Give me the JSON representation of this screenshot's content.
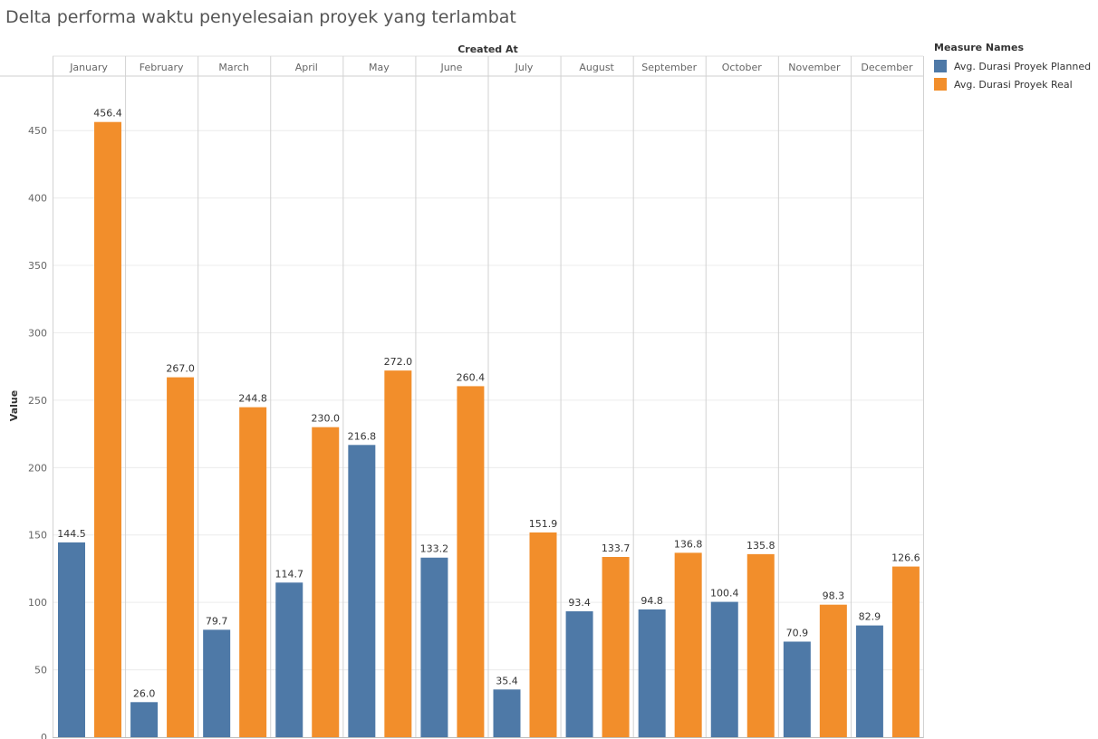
{
  "chart_data": {
    "type": "bar",
    "title": "Delta performa waktu penyelesaian proyek yang terlambat",
    "column_header": "Created At",
    "ylabel": "Value",
    "ylim": [
      0,
      487
    ],
    "yticks": [
      0,
      50,
      100,
      150,
      200,
      250,
      300,
      350,
      400,
      450
    ],
    "categories": [
      "January",
      "February",
      "March",
      "April",
      "May",
      "June",
      "July",
      "August",
      "September",
      "October",
      "November",
      "December"
    ],
    "series": [
      {
        "name": "Avg. Durasi Proyek Planned",
        "color": "#4e79a7",
        "values": [
          144.5,
          26.0,
          79.7,
          114.7,
          216.8,
          133.2,
          35.4,
          93.4,
          94.8,
          100.4,
          70.9,
          82.9
        ],
        "labels": [
          "144.5",
          "26.0",
          "79.7",
          "114.7",
          "216.8",
          "133.2",
          "35.4",
          "93.4",
          "94.8",
          "100.4",
          "70.9",
          "82.9"
        ]
      },
      {
        "name": "Avg. Durasi Proyek Real",
        "color": "#f28e2b",
        "values": [
          456.4,
          267.0,
          244.8,
          230.0,
          272.0,
          260.4,
          151.9,
          133.7,
          136.8,
          135.8,
          98.3,
          126.6
        ],
        "labels": [
          "456.4",
          "267.0",
          "244.8",
          "230.0",
          "272.0",
          "260.4",
          "151.9",
          "133.7",
          "136.8",
          "135.8",
          "98.3",
          "126.6"
        ]
      }
    ],
    "legend": {
      "title": "Measure Names",
      "position": "right"
    },
    "grid": true
  }
}
